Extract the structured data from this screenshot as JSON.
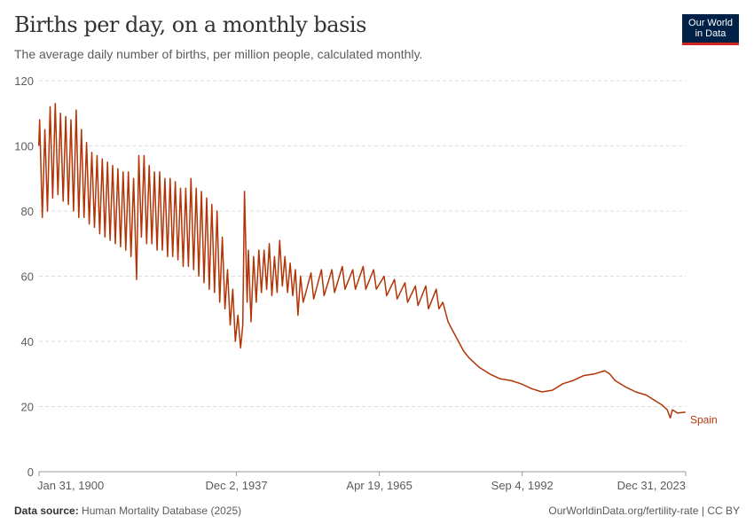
{
  "header": {
    "title": "Births per day, on a monthly basis",
    "subtitle": "The average daily number of births, per million people, calculated monthly.",
    "logo": "Our World in Data"
  },
  "footer": {
    "source_label": "Data source:",
    "source": "Human Mortality Database (2025)",
    "url": "OurWorldinData.org/fertility-rate | CC BY"
  },
  "colors": {
    "series": "#b13507",
    "text": "#5b5b5b",
    "grid": "#dddddd"
  },
  "chart_data": {
    "type": "line",
    "title": "Births per day, on a monthly basis",
    "ylim": [
      0,
      120
    ],
    "yticks": [
      0,
      20,
      40,
      60,
      80,
      100,
      120
    ],
    "xlim": [
      "1900-01-31",
      "2023-12-31"
    ],
    "xtick_labels": [
      "Jan 31, 1900",
      "Dec 2, 1937",
      "Apr 19, 1965",
      "Sep 4, 1992",
      "Dec 31, 2023"
    ],
    "xtick_dates": [
      "1900-01-31",
      "1937-12-02",
      "1965-04-19",
      "1992-09-04",
      "2023-12-31"
    ],
    "grid": true,
    "series": [
      {
        "name": "Spain",
        "points": [
          [
            "1900-01",
            100
          ],
          [
            "1900-03",
            108
          ],
          [
            "1900-09",
            78
          ],
          [
            "1901-03",
            105
          ],
          [
            "1901-09",
            80
          ],
          [
            "1902-03",
            112
          ],
          [
            "1902-09",
            84
          ],
          [
            "1903-03",
            113
          ],
          [
            "1903-09",
            85
          ],
          [
            "1904-03",
            110
          ],
          [
            "1904-09",
            83
          ],
          [
            "1905-03",
            109
          ],
          [
            "1905-09",
            82
          ],
          [
            "1906-03",
            108
          ],
          [
            "1906-09",
            80
          ],
          [
            "1907-03",
            111
          ],
          [
            "1907-09",
            78
          ],
          [
            "1908-03",
            105
          ],
          [
            "1908-09",
            78
          ],
          [
            "1909-03",
            101
          ],
          [
            "1909-09",
            76
          ],
          [
            "1910-03",
            98
          ],
          [
            "1910-09",
            75
          ],
          [
            "1911-03",
            97
          ],
          [
            "1911-09",
            73
          ],
          [
            "1912-03",
            96
          ],
          [
            "1912-09",
            72
          ],
          [
            "1913-03",
            95
          ],
          [
            "1913-09",
            71
          ],
          [
            "1914-03",
            94
          ],
          [
            "1914-09",
            70
          ],
          [
            "1915-03",
            93
          ],
          [
            "1915-09",
            69
          ],
          [
            "1916-03",
            92
          ],
          [
            "1916-09",
            68
          ],
          [
            "1917-03",
            92
          ],
          [
            "1917-09",
            66
          ],
          [
            "1918-03",
            90
          ],
          [
            "1918-10",
            59
          ],
          [
            "1919-03",
            97
          ],
          [
            "1919-09",
            72
          ],
          [
            "1920-03",
            97
          ],
          [
            "1920-09",
            70
          ],
          [
            "1921-03",
            94
          ],
          [
            "1921-09",
            70
          ],
          [
            "1922-03",
            92
          ],
          [
            "1922-09",
            68
          ],
          [
            "1923-03",
            92
          ],
          [
            "1923-09",
            68
          ],
          [
            "1924-03",
            90
          ],
          [
            "1924-09",
            66
          ],
          [
            "1925-03",
            90
          ],
          [
            "1925-09",
            66
          ],
          [
            "1926-03",
            89
          ],
          [
            "1926-09",
            65
          ],
          [
            "1927-03",
            87
          ],
          [
            "1927-09",
            63
          ],
          [
            "1928-03",
            87
          ],
          [
            "1928-09",
            63
          ],
          [
            "1929-03",
            90
          ],
          [
            "1929-09",
            62
          ],
          [
            "1930-03",
            87
          ],
          [
            "1930-09",
            60
          ],
          [
            "1931-03",
            86
          ],
          [
            "1931-09",
            58
          ],
          [
            "1932-03",
            84
          ],
          [
            "1932-09",
            56
          ],
          [
            "1933-03",
            82
          ],
          [
            "1933-09",
            55
          ],
          [
            "1934-03",
            80
          ],
          [
            "1934-09",
            52
          ],
          [
            "1935-03",
            72
          ],
          [
            "1935-09",
            50
          ],
          [
            "1936-03",
            62
          ],
          [
            "1936-09",
            45
          ],
          [
            "1937-03",
            56
          ],
          [
            "1937-09",
            40
          ],
          [
            "1938-03",
            48
          ],
          [
            "1938-09",
            38
          ],
          [
            "1939-02",
            45
          ],
          [
            "1939-06",
            86
          ],
          [
            "1939-12",
            52
          ],
          [
            "1940-03",
            68
          ],
          [
            "1940-09",
            46
          ],
          [
            "1941-03",
            66
          ],
          [
            "1941-09",
            52
          ],
          [
            "1942-03",
            68
          ],
          [
            "1942-09",
            55
          ],
          [
            "1943-03",
            68
          ],
          [
            "1943-09",
            56
          ],
          [
            "1944-03",
            70
          ],
          [
            "1944-09",
            54
          ],
          [
            "1945-03",
            66
          ],
          [
            "1945-09",
            55
          ],
          [
            "1946-03",
            71
          ],
          [
            "1946-09",
            57
          ],
          [
            "1947-03",
            66
          ],
          [
            "1947-09",
            55
          ],
          [
            "1948-03",
            64
          ],
          [
            "1948-09",
            54
          ],
          [
            "1949-03",
            62
          ],
          [
            "1949-09",
            48
          ],
          [
            "1950-03",
            60
          ],
          [
            "1950-09",
            52
          ],
          [
            "1952-03",
            61
          ],
          [
            "1952-09",
            53
          ],
          [
            "1954-03",
            62
          ],
          [
            "1954-09",
            54
          ],
          [
            "1956-03",
            62
          ],
          [
            "1956-09",
            55
          ],
          [
            "1958-03",
            63
          ],
          [
            "1958-09",
            56
          ],
          [
            "1960-03",
            62
          ],
          [
            "1960-09",
            56
          ],
          [
            "1962-03",
            63
          ],
          [
            "1962-09",
            56
          ],
          [
            "1964-03",
            62
          ],
          [
            "1964-09",
            56
          ],
          [
            "1966-03",
            60
          ],
          [
            "1966-09",
            54
          ],
          [
            "1968-03",
            59
          ],
          [
            "1968-09",
            53
          ],
          [
            "1970-03",
            58
          ],
          [
            "1970-09",
            52
          ],
          [
            "1972-03",
            57
          ],
          [
            "1972-09",
            51
          ],
          [
            "1974-03",
            57
          ],
          [
            "1974-09",
            50
          ],
          [
            "1976-03",
            56
          ],
          [
            "1976-09",
            50
          ],
          [
            "1977-06",
            52
          ],
          [
            "1978-06",
            46
          ],
          [
            "1979-06",
            43
          ],
          [
            "1980-06",
            40
          ],
          [
            "1981-06",
            37
          ],
          [
            "1982-06",
            35
          ],
          [
            "1984-06",
            32
          ],
          [
            "1986-06",
            30
          ],
          [
            "1988-06",
            28.5
          ],
          [
            "1990-06",
            28
          ],
          [
            "1992-06",
            27
          ],
          [
            "1994-06",
            25.5
          ],
          [
            "1996-06",
            24.5
          ],
          [
            "1998-06",
            25
          ],
          [
            "2000-06",
            27
          ],
          [
            "2002-06",
            28
          ],
          [
            "2004-06",
            29.5
          ],
          [
            "2006-06",
            30
          ],
          [
            "2008-06",
            31
          ],
          [
            "2009-06",
            30
          ],
          [
            "2010-06",
            28
          ],
          [
            "2012-06",
            26
          ],
          [
            "2014-06",
            24.5
          ],
          [
            "2016-06",
            23.5
          ],
          [
            "2018-06",
            21.5
          ],
          [
            "2019-06",
            20.5
          ],
          [
            "2020-06",
            19
          ],
          [
            "2021-01",
            16.5
          ],
          [
            "2021-06",
            19
          ],
          [
            "2022-06",
            18
          ],
          [
            "2023-12",
            18.3
          ]
        ]
      }
    ]
  }
}
